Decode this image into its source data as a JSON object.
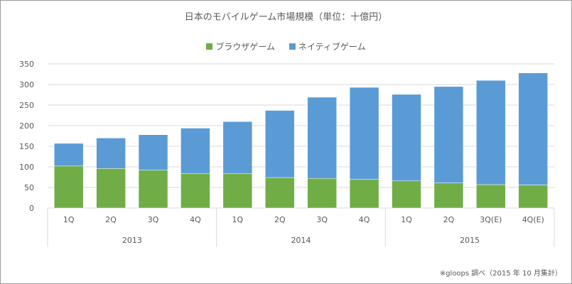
{
  "chart_data": {
    "type": "bar",
    "stacked": true,
    "title": "日本のモバイルゲーム市場規模（単位：十億円）",
    "categories": [
      "1Q",
      "2Q",
      "3Q",
      "4Q",
      "1Q",
      "2Q",
      "3Q",
      "4Q",
      "1Q",
      "2Q",
      "3Q(E)",
      "4Q(E)"
    ],
    "groups": [
      {
        "label": "2013",
        "count": 4
      },
      {
        "label": "2014",
        "count": 4
      },
      {
        "label": "2015",
        "count": 4
      }
    ],
    "series": [
      {
        "name": "ブラウザゲーム",
        "color": "#70ad47",
        "values": [
          102,
          96,
          92,
          84,
          84,
          74,
          72,
          70,
          66,
          61,
          57,
          56
        ]
      },
      {
        "name": "ネイティブゲーム",
        "color": "#5b9bd5",
        "values": [
          55,
          74,
          86,
          110,
          126,
          163,
          197,
          223,
          210,
          234,
          253,
          272
        ]
      }
    ],
    "ylim": [
      0,
      350
    ],
    "yticks": [
      0,
      50,
      100,
      150,
      200,
      250,
      300,
      350
    ],
    "grid": true,
    "legend": "top",
    "note": "※gloops 調べ（2015 年 10 月集計）"
  }
}
